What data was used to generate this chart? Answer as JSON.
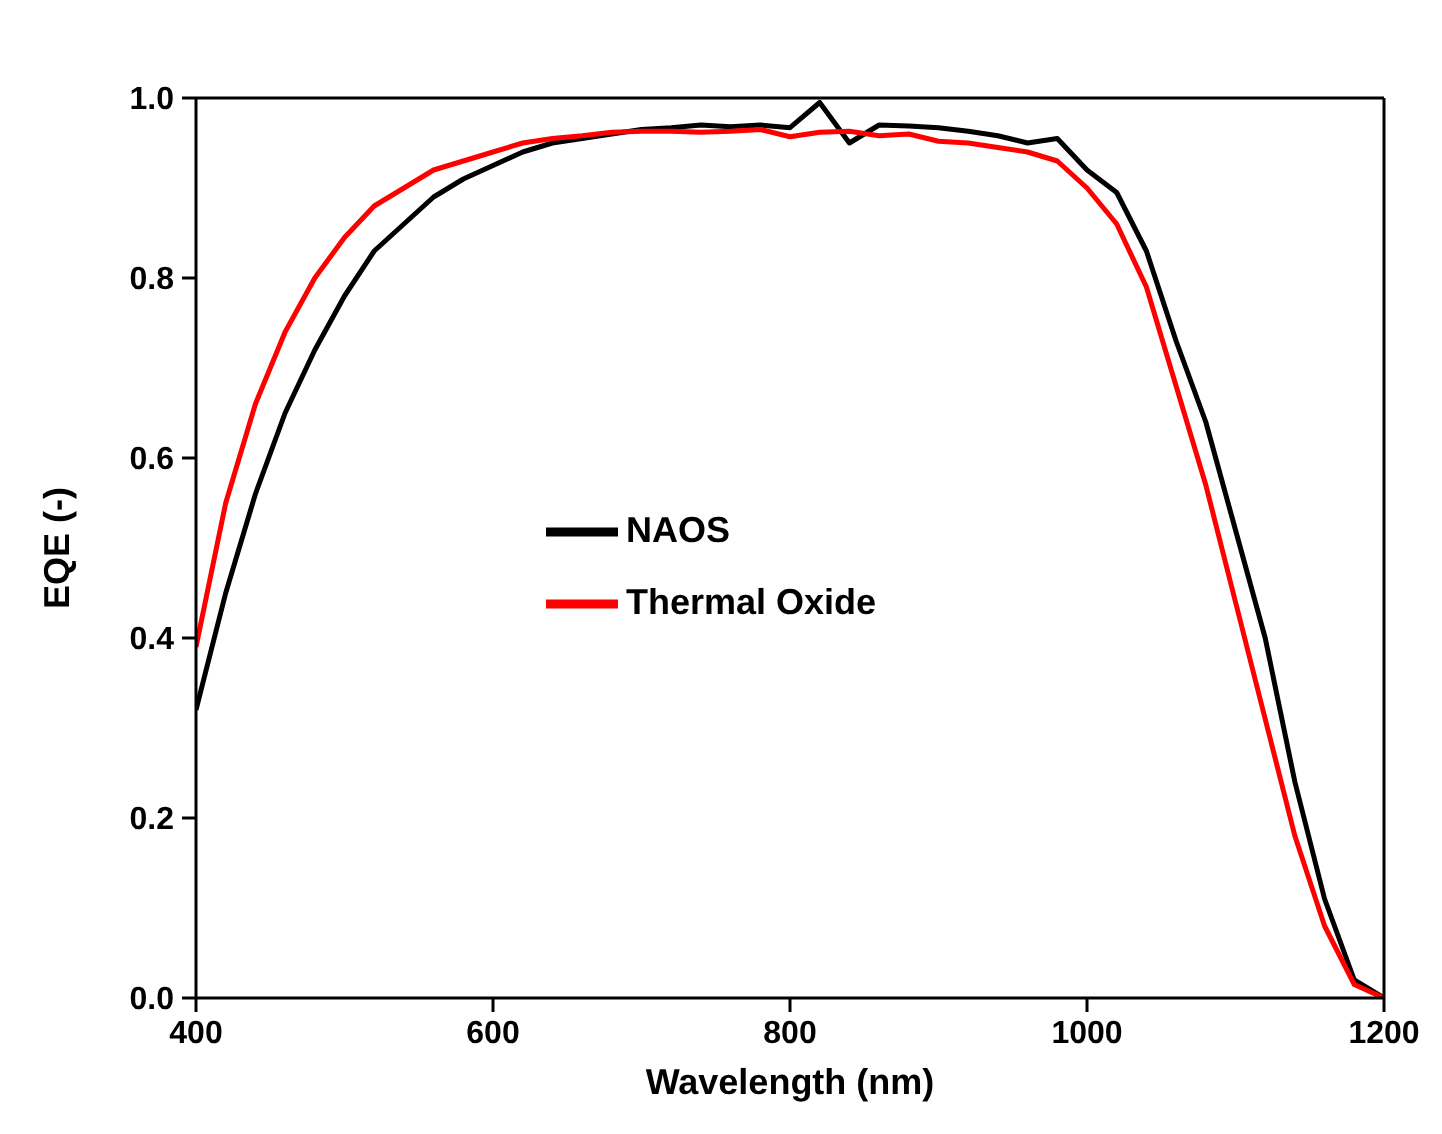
{
  "chart_data": {
    "type": "line",
    "xlabel": "Wavelength (nm)",
    "ylabel": "EQE (-)",
    "x": [
      400,
      420,
      440,
      460,
      480,
      500,
      520,
      540,
      560,
      580,
      600,
      620,
      640,
      660,
      680,
      700,
      720,
      740,
      760,
      780,
      800,
      820,
      840,
      860,
      880,
      900,
      920,
      940,
      960,
      980,
      1000,
      1020,
      1040,
      1060,
      1080,
      1100,
      1120,
      1140,
      1160,
      1180,
      1200
    ],
    "series": [
      {
        "name": "NAOS",
        "color": "#000000",
        "values": [
          0.32,
          0.45,
          0.56,
          0.65,
          0.72,
          0.78,
          0.83,
          0.86,
          0.89,
          0.91,
          0.925,
          0.94,
          0.95,
          0.955,
          0.96,
          0.965,
          0.967,
          0.97,
          0.968,
          0.97,
          0.967,
          0.995,
          0.95,
          0.97,
          0.969,
          0.967,
          0.963,
          0.958,
          0.95,
          0.955,
          0.92,
          0.895,
          0.83,
          0.73,
          0.64,
          0.52,
          0.4,
          0.24,
          0.11,
          0.02,
          0.0
        ]
      },
      {
        "name": "Thermal Oxide",
        "color": "#ff0000",
        "values": [
          0.39,
          0.55,
          0.66,
          0.74,
          0.8,
          0.845,
          0.88,
          0.9,
          0.92,
          0.93,
          0.94,
          0.95,
          0.955,
          0.958,
          0.962,
          0.963,
          0.963,
          0.962,
          0.963,
          0.965,
          0.957,
          0.962,
          0.963,
          0.958,
          0.96,
          0.952,
          0.95,
          0.945,
          0.94,
          0.93,
          0.9,
          0.86,
          0.79,
          0.68,
          0.57,
          0.44,
          0.31,
          0.18,
          0.08,
          0.015,
          0.0
        ]
      }
    ],
    "xlim": [
      400,
      1200
    ],
    "ylim": [
      0,
      1
    ],
    "xticks": [
      400,
      600,
      800,
      1000,
      1200
    ],
    "yticks": [
      {
        "value": 0,
        "label": "0.0"
      },
      {
        "value": 0.2,
        "label": "0.2"
      },
      {
        "value": 0.4,
        "label": "0.4"
      },
      {
        "value": 0.6,
        "label": "0.6"
      },
      {
        "value": 0.8,
        "label": "0.8"
      },
      {
        "value": 1,
        "label": "1.0"
      }
    ],
    "legend": "center",
    "marker": "none",
    "line_style": "solid"
  }
}
